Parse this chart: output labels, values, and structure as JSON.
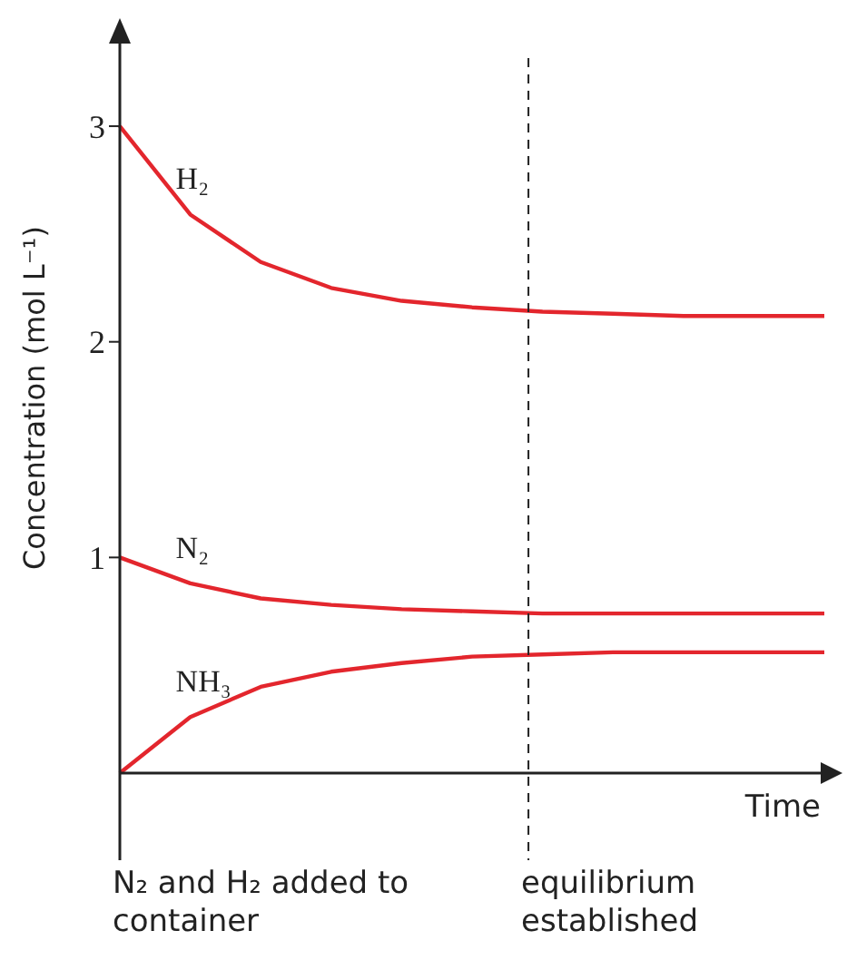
{
  "chart_data": {
    "type": "line",
    "ylabel": "Concentration (mol L⁻¹)",
    "xlabel": "Time",
    "categories": [
      null,
      null,
      null,
      null,
      null,
      null,
      null,
      null,
      null,
      null,
      null
    ],
    "series": [
      {
        "name": "H₂",
        "color": "#e3262d",
        "values": [
          3,
          2.59,
          2.37,
          2.25,
          2.19,
          2.16,
          2.14,
          2.13,
          2.12,
          2.12,
          2.12
        ]
      },
      {
        "name": "N₂",
        "color": "#e3262d",
        "values": [
          1,
          0.88,
          0.81,
          0.78,
          0.76,
          0.75,
          0.74,
          0.74,
          0.74,
          0.74,
          0.74
        ]
      },
      {
        "name": "NH₃",
        "color": "#e3262d",
        "values": [
          0,
          0.26,
          0.4,
          0.47,
          0.51,
          0.54,
          0.55,
          0.56,
          0.56,
          0.56,
          0.56
        ]
      }
    ],
    "ylim": [
      0,
      3.4
    ],
    "yticks": [
      1,
      2,
      3
    ],
    "tick_labels": "y",
    "annotations": [
      "N₂ and H₂ added to container",
      "equilibrium established"
    ]
  }
}
